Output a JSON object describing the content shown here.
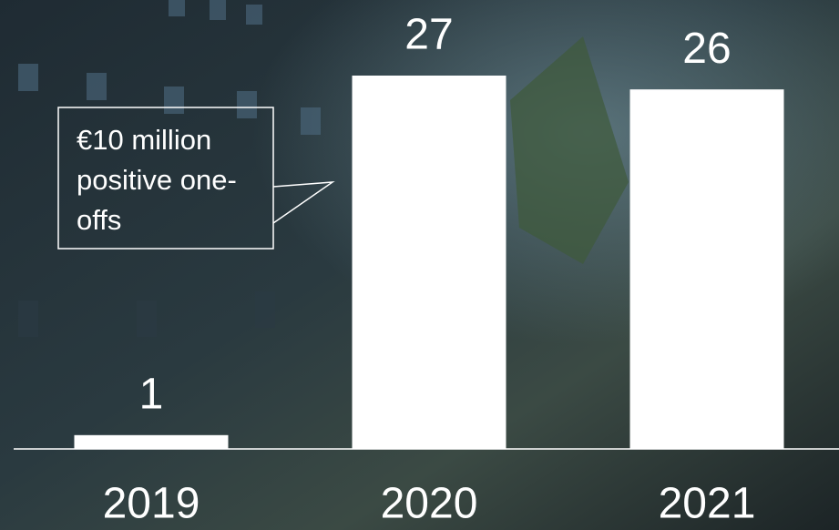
{
  "chart_data": {
    "type": "bar",
    "categories": [
      "2019",
      "2020",
      "2021"
    ],
    "values": [
      1,
      27,
      26
    ],
    "color": "#ffffff",
    "annotation": "€10 million positive one-offs"
  }
}
